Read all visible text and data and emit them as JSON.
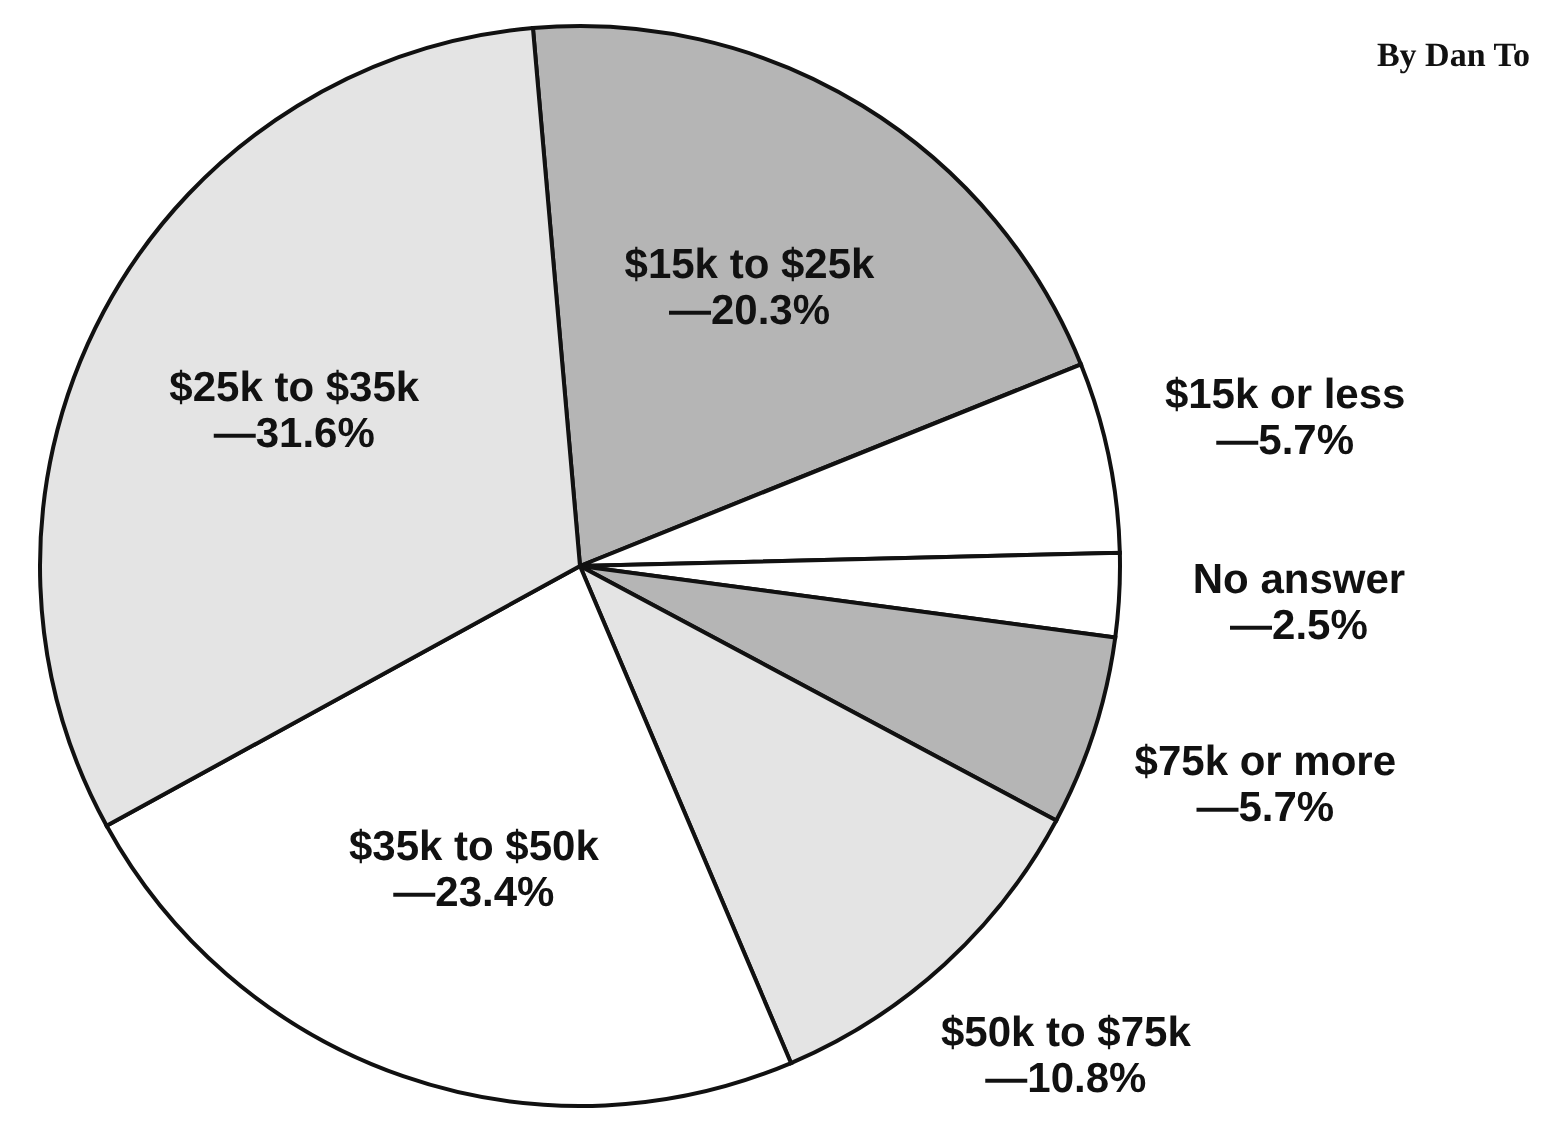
{
  "chart_data": {
    "type": "pie",
    "categories": [
      "$15k to $25k",
      "$15k or less",
      "No answer",
      "$75k or more",
      "$50k to $75k",
      "$35k to $50k",
      "$25k to $35k"
    ],
    "values": [
      20.3,
      5.7,
      2.5,
      5.7,
      10.8,
      23.4,
      31.6
    ],
    "value_labels": [
      "—20.3%",
      "—5.7%",
      "—2.5%",
      "—5.7%",
      "—10.8%",
      "—23.4%",
      "—31.6%"
    ],
    "colors": [
      "#b5b5b5",
      "#ffffff",
      "#ffffff",
      "#b5b5b5",
      "#e4e4e4",
      "#ffffff",
      "#e4e4e4"
    ],
    "annotations": [
      "By Dan To"
    ]
  }
}
